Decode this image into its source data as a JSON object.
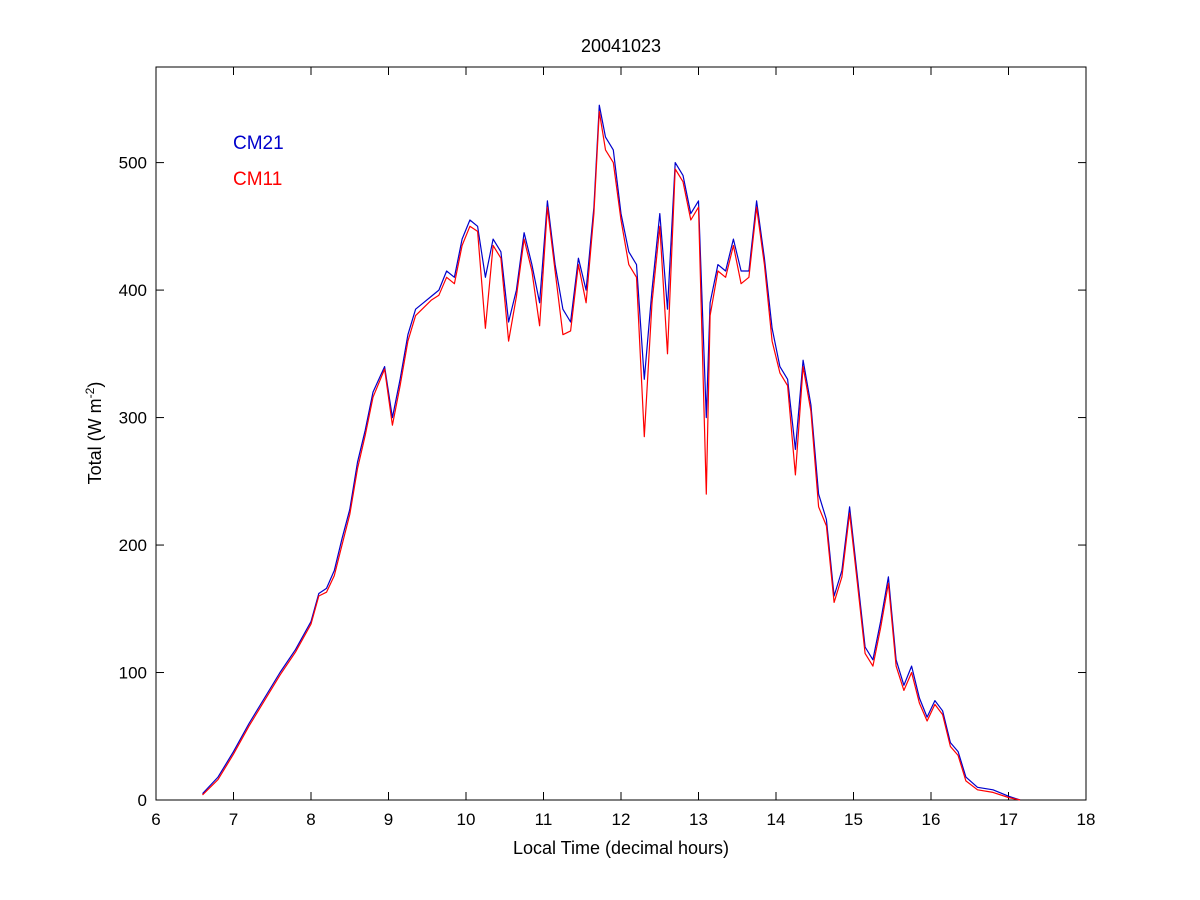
{
  "chart_data": {
    "type": "line",
    "title": "20041023",
    "xlabel": "Local Time (decimal hours)",
    "ylabel": {
      "main": "Total (W m",
      "sup": "-2",
      "end": ")"
    },
    "xlim": [
      6,
      18
    ],
    "ylim": [
      0,
      575
    ],
    "xticks": [
      6,
      7,
      8,
      9,
      10,
      11,
      12,
      13,
      14,
      15,
      16,
      17,
      18
    ],
    "yticks": [
      0,
      100,
      200,
      300,
      400,
      500
    ],
    "grid": false,
    "legend": "top-left",
    "series": [
      {
        "name": "CM21",
        "color": "#0000cc",
        "x": [
          6.6,
          6.8,
          7.0,
          7.2,
          7.4,
          7.6,
          7.8,
          8.0,
          8.1,
          8.2,
          8.3,
          8.4,
          8.5,
          8.6,
          8.7,
          8.8,
          8.95,
          9.05,
          9.15,
          9.25,
          9.35,
          9.45,
          9.55,
          9.65,
          9.75,
          9.85,
          9.95,
          10.05,
          10.15,
          10.25,
          10.35,
          10.45,
          10.55,
          10.65,
          10.75,
          10.85,
          10.95,
          11.05,
          11.15,
          11.25,
          11.35,
          11.45,
          11.55,
          11.65,
          11.72,
          11.8,
          11.9,
          12.0,
          12.1,
          12.2,
          12.3,
          12.4,
          12.5,
          12.6,
          12.7,
          12.8,
          12.9,
          13.0,
          13.1,
          13.15,
          13.25,
          13.35,
          13.45,
          13.55,
          13.65,
          13.75,
          13.85,
          13.95,
          14.05,
          14.15,
          14.25,
          14.35,
          14.45,
          14.55,
          14.65,
          14.75,
          14.85,
          14.95,
          15.05,
          15.15,
          15.25,
          15.35,
          15.45,
          15.55,
          15.65,
          15.75,
          15.85,
          15.95,
          16.05,
          16.15,
          16.25,
          16.35,
          16.45,
          16.6,
          16.8,
          17.0,
          17.15
        ],
        "y": [
          5,
          18,
          38,
          60,
          80,
          100,
          118,
          140,
          162,
          166,
          180,
          205,
          228,
          265,
          290,
          320,
          340,
          300,
          330,
          365,
          385,
          390,
          395,
          400,
          415,
          410,
          440,
          455,
          450,
          410,
          440,
          430,
          375,
          400,
          445,
          420,
          390,
          470,
          420,
          385,
          375,
          425,
          400,
          465,
          545,
          520,
          510,
          460,
          430,
          420,
          330,
          400,
          460,
          385,
          500,
          490,
          460,
          470,
          300,
          390,
          420,
          415,
          440,
          415,
          415,
          470,
          425,
          370,
          340,
          330,
          275,
          345,
          310,
          240,
          220,
          160,
          180,
          230,
          175,
          120,
          110,
          140,
          175,
          110,
          90,
          105,
          80,
          65,
          78,
          70,
          45,
          38,
          18,
          10,
          8,
          3,
          0
        ]
      },
      {
        "name": "CM11",
        "color": "#ff0000",
        "x": [
          6.6,
          6.8,
          7.0,
          7.2,
          7.4,
          7.6,
          7.8,
          8.0,
          8.1,
          8.2,
          8.3,
          8.4,
          8.5,
          8.6,
          8.7,
          8.8,
          8.95,
          9.05,
          9.15,
          9.25,
          9.35,
          9.45,
          9.55,
          9.65,
          9.75,
          9.85,
          9.95,
          10.05,
          10.15,
          10.25,
          10.35,
          10.45,
          10.55,
          10.65,
          10.75,
          10.85,
          10.95,
          11.05,
          11.15,
          11.25,
          11.35,
          11.45,
          11.55,
          11.65,
          11.72,
          11.8,
          11.9,
          12.0,
          12.1,
          12.2,
          12.3,
          12.4,
          12.5,
          12.6,
          12.7,
          12.8,
          12.9,
          13.0,
          13.1,
          13.15,
          13.25,
          13.35,
          13.45,
          13.55,
          13.65,
          13.75,
          13.85,
          13.95,
          14.05,
          14.15,
          14.25,
          14.35,
          14.45,
          14.55,
          14.65,
          14.75,
          14.85,
          14.95,
          15.05,
          15.15,
          15.25,
          15.35,
          15.45,
          15.55,
          15.65,
          15.75,
          15.85,
          15.95,
          16.05,
          16.15,
          16.25,
          16.35,
          16.45,
          16.6,
          16.8,
          17.0,
          17.15
        ],
        "y": [
          4,
          16,
          36,
          58,
          78,
          98,
          116,
          138,
          160,
          163,
          176,
          200,
          224,
          260,
          286,
          316,
          338,
          294,
          325,
          360,
          380,
          386,
          392,
          396,
          410,
          405,
          435,
          450,
          446,
          370,
          435,
          425,
          360,
          395,
          440,
          415,
          372,
          465,
          415,
          365,
          368,
          420,
          390,
          460,
          540,
          510,
          500,
          455,
          420,
          410,
          285,
          390,
          450,
          350,
          495,
          485,
          455,
          465,
          240,
          380,
          415,
          410,
          435,
          405,
          410,
          465,
          420,
          360,
          335,
          325,
          255,
          340,
          305,
          230,
          215,
          155,
          175,
          225,
          170,
          115,
          105,
          135,
          170,
          105,
          86,
          100,
          76,
          62,
          75,
          67,
          42,
          35,
          15,
          8,
          6,
          2,
          0
        ]
      }
    ]
  }
}
